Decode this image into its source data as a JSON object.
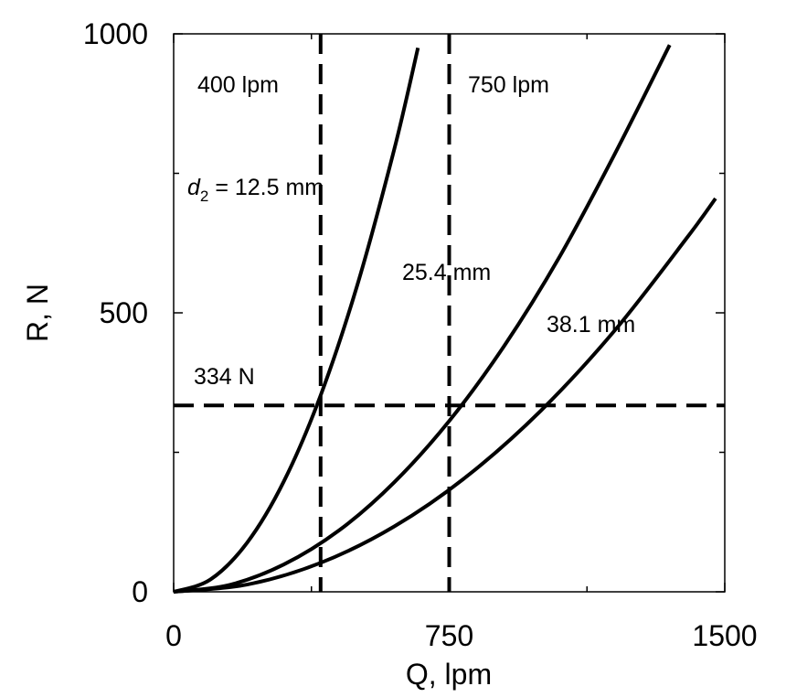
{
  "chart_data": {
    "type": "line",
    "xlabel": "Q, lpm",
    "ylabel": "R, N",
    "xlim": [
      0,
      1500
    ],
    "ylim": [
      0,
      1000
    ],
    "xticks": [
      0,
      750,
      1500
    ],
    "xtick_labels": [
      "0",
      "750",
      "1500"
    ],
    "yticks": [
      0,
      500,
      1000
    ],
    "ytick_labels": [
      "0",
      "500",
      "1000"
    ],
    "minor_xticks": [
      375,
      1125
    ],
    "minor_yticks": [
      250,
      750
    ],
    "grid": false,
    "series": [
      {
        "name": "d2 = 12.5 mm",
        "x": [
          0,
          100,
          200,
          300,
          400,
          500,
          600,
          665
        ],
        "y": [
          0,
          22,
          88,
          198,
          352,
          550,
          792,
          975
        ]
      },
      {
        "name": "25.4 mm",
        "x": [
          0,
          150,
          300,
          450,
          600,
          750,
          900,
          1050,
          1200,
          1350
        ],
        "y": [
          0,
          12,
          49,
          110,
          196,
          306,
          441,
          600,
          784,
          980
        ]
      },
      {
        "name": "38.1 mm",
        "x": [
          0,
          200,
          400,
          600,
          800,
          1000,
          1200,
          1400,
          1475
        ],
        "y": [
          0,
          13,
          52,
          117,
          208,
          325,
          468,
          637,
          705
        ]
      }
    ],
    "reference_lines": [
      {
        "orientation": "vertical",
        "value": 400,
        "label": "400 lpm"
      },
      {
        "orientation": "vertical",
        "value": 750,
        "label": "750 lpm"
      },
      {
        "orientation": "horizontal",
        "value": 334,
        "label": "334 N"
      }
    ],
    "annotations": {
      "d2_prefix": "d",
      "d2_sub": "2",
      "d2_value": " = 12.5 mm",
      "mid_curve": "25.4 mm",
      "low_curve": "38.1 mm"
    }
  }
}
